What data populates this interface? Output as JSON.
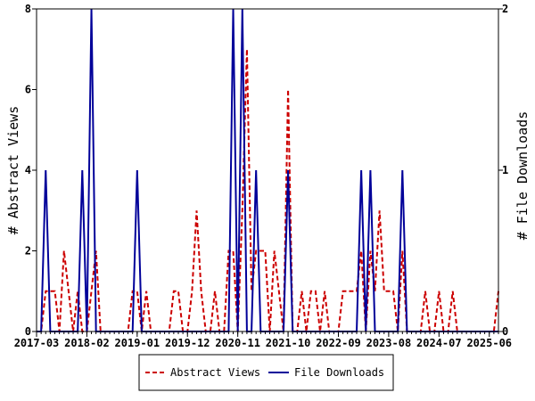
{
  "chart_data": {
    "type": "line",
    "left_axis": {
      "label": "# Abstract Views",
      "ylim": [
        0,
        8
      ],
      "ticks": [
        "0",
        "2",
        "4",
        "6",
        "8"
      ]
    },
    "right_axis": {
      "label": "# File Downloads",
      "ylim": [
        0,
        2
      ],
      "ticks": [
        "0",
        "1",
        "2"
      ]
    },
    "x_ticks": [
      "2017-03",
      "2018-02",
      "2019-01",
      "2019-12",
      "2020-11",
      "2021-10",
      "2022-09",
      "2023-08",
      "2024-07",
      "2025-06"
    ],
    "x_start": "2017-03",
    "grid": false,
    "legend_position": "bottom",
    "colors": {
      "abstract": "#cc0000",
      "downloads": "#000099"
    },
    "series": [
      {
        "name": "Abstract Views",
        "axis": "left",
        "style": "dashed",
        "points": [
          [
            "2017-03",
            0
          ],
          [
            "2017-04",
            0
          ],
          [
            "2017-05",
            1
          ],
          [
            "2017-06",
            1
          ],
          [
            "2017-07",
            1
          ],
          [
            "2017-08",
            0
          ],
          [
            "2017-09",
            2
          ],
          [
            "2017-10",
            1
          ],
          [
            "2017-11",
            0
          ],
          [
            "2017-12",
            1
          ],
          [
            "2018-01",
            0
          ],
          [
            "2018-02",
            0
          ],
          [
            "2018-03",
            1
          ],
          [
            "2018-04",
            2
          ],
          [
            "2018-05",
            0
          ],
          [
            "2018-06",
            0
          ],
          [
            "2018-07",
            0
          ],
          [
            "2018-08",
            0
          ],
          [
            "2018-09",
            0
          ],
          [
            "2018-10",
            0
          ],
          [
            "2018-11",
            0
          ],
          [
            "2018-12",
            1
          ],
          [
            "2019-01",
            1
          ],
          [
            "2019-02",
            0
          ],
          [
            "2019-03",
            1
          ],
          [
            "2019-04",
            0
          ],
          [
            "2019-05",
            0
          ],
          [
            "2019-06",
            0
          ],
          [
            "2019-07",
            0
          ],
          [
            "2019-08",
            0
          ],
          [
            "2019-09",
            1
          ],
          [
            "2019-10",
            1
          ],
          [
            "2019-11",
            0
          ],
          [
            "2019-12",
            0
          ],
          [
            "2020-01",
            1
          ],
          [
            "2020-02",
            3
          ],
          [
            "2020-03",
            1
          ],
          [
            "2020-04",
            0
          ],
          [
            "2020-05",
            0
          ],
          [
            "2020-06",
            1
          ],
          [
            "2020-07",
            0
          ],
          [
            "2020-08",
            0
          ],
          [
            "2020-09",
            2
          ],
          [
            "2020-10",
            2
          ],
          [
            "2020-11",
            0
          ],
          [
            "2020-12",
            3
          ],
          [
            "2021-01",
            7
          ],
          [
            "2021-02",
            1
          ],
          [
            "2021-03",
            2
          ],
          [
            "2021-04",
            2
          ],
          [
            "2021-05",
            2
          ],
          [
            "2021-06",
            0
          ],
          [
            "2021-07",
            2
          ],
          [
            "2021-08",
            1
          ],
          [
            "2021-09",
            0
          ],
          [
            "2021-10",
            6
          ],
          [
            "2021-11",
            0
          ],
          [
            "2021-12",
            0
          ],
          [
            "2022-01",
            1
          ],
          [
            "2022-02",
            0
          ],
          [
            "2022-03",
            1
          ],
          [
            "2022-04",
            1
          ],
          [
            "2022-05",
            0
          ],
          [
            "2022-06",
            1
          ],
          [
            "2022-07",
            0
          ],
          [
            "2022-08",
            0
          ],
          [
            "2022-09",
            0
          ],
          [
            "2022-10",
            1
          ],
          [
            "2022-11",
            1
          ],
          [
            "2022-12",
            1
          ],
          [
            "2023-01",
            1
          ],
          [
            "2023-02",
            2
          ],
          [
            "2023-03",
            0
          ],
          [
            "2023-04",
            2
          ],
          [
            "2023-05",
            1
          ],
          [
            "2023-06",
            3
          ],
          [
            "2023-07",
            1
          ],
          [
            "2023-08",
            1
          ],
          [
            "2023-09",
            1
          ],
          [
            "2023-10",
            0
          ],
          [
            "2023-11",
            2
          ],
          [
            "2023-12",
            0
          ],
          [
            "2024-01",
            0
          ],
          [
            "2024-02",
            0
          ],
          [
            "2024-03",
            0
          ],
          [
            "2024-04",
            1
          ],
          [
            "2024-05",
            0
          ],
          [
            "2024-06",
            0
          ],
          [
            "2024-07",
            1
          ],
          [
            "2024-08",
            0
          ],
          [
            "2024-09",
            0
          ],
          [
            "2024-10",
            1
          ],
          [
            "2024-11",
            0
          ],
          [
            "2024-12",
            0
          ],
          [
            "2025-01",
            0
          ],
          [
            "2025-02",
            0
          ],
          [
            "2025-03",
            0
          ],
          [
            "2025-04",
            0
          ],
          [
            "2025-05",
            0
          ],
          [
            "2025-06",
            0
          ],
          [
            "2025-07",
            0
          ],
          [
            "2025-08",
            1
          ]
        ]
      },
      {
        "name": "File Downloads",
        "axis": "right",
        "style": "solid",
        "points": [
          [
            "2017-03",
            0
          ],
          [
            "2017-04",
            0
          ],
          [
            "2017-05",
            1
          ],
          [
            "2017-06",
            0
          ],
          [
            "2017-07",
            0
          ],
          [
            "2017-08",
            0
          ],
          [
            "2017-09",
            0
          ],
          [
            "2017-10",
            0
          ],
          [
            "2017-11",
            0
          ],
          [
            "2017-12",
            0
          ],
          [
            "2018-01",
            1
          ],
          [
            "2018-02",
            0
          ],
          [
            "2018-03",
            2
          ],
          [
            "2018-04",
            0
          ],
          [
            "2018-05",
            0
          ],
          [
            "2018-06",
            0
          ],
          [
            "2018-07",
            0
          ],
          [
            "2018-08",
            0
          ],
          [
            "2018-09",
            0
          ],
          [
            "2018-10",
            0
          ],
          [
            "2018-11",
            0
          ],
          [
            "2018-12",
            0
          ],
          [
            "2019-01",
            1
          ],
          [
            "2019-02",
            0
          ],
          [
            "2019-03",
            0
          ],
          [
            "2019-04",
            0
          ],
          [
            "2019-05",
            0
          ],
          [
            "2019-06",
            0
          ],
          [
            "2019-07",
            0
          ],
          [
            "2019-08",
            0
          ],
          [
            "2019-09",
            0
          ],
          [
            "2019-10",
            0
          ],
          [
            "2019-11",
            0
          ],
          [
            "2019-12",
            0
          ],
          [
            "2020-01",
            0
          ],
          [
            "2020-02",
            0
          ],
          [
            "2020-03",
            0
          ],
          [
            "2020-04",
            0
          ],
          [
            "2020-05",
            0
          ],
          [
            "2020-06",
            0
          ],
          [
            "2020-07",
            0
          ],
          [
            "2020-08",
            0
          ],
          [
            "2020-09",
            0
          ],
          [
            "2020-10",
            2
          ],
          [
            "2020-11",
            0
          ],
          [
            "2020-12",
            2
          ],
          [
            "2021-01",
            0
          ],
          [
            "2021-02",
            0
          ],
          [
            "2021-03",
            1
          ],
          [
            "2021-04",
            0
          ],
          [
            "2021-05",
            0
          ],
          [
            "2021-06",
            0
          ],
          [
            "2021-07",
            0
          ],
          [
            "2021-08",
            0
          ],
          [
            "2021-09",
            0
          ],
          [
            "2021-10",
            1
          ],
          [
            "2021-11",
            0
          ],
          [
            "2021-12",
            0
          ],
          [
            "2022-01",
            0
          ],
          [
            "2022-02",
            0
          ],
          [
            "2022-03",
            0
          ],
          [
            "2022-04",
            0
          ],
          [
            "2022-05",
            0
          ],
          [
            "2022-06",
            0
          ],
          [
            "2022-07",
            0
          ],
          [
            "2022-08",
            0
          ],
          [
            "2022-09",
            0
          ],
          [
            "2022-10",
            0
          ],
          [
            "2022-11",
            0
          ],
          [
            "2022-12",
            0
          ],
          [
            "2023-01",
            0
          ],
          [
            "2023-02",
            1
          ],
          [
            "2023-03",
            0
          ],
          [
            "2023-04",
            1
          ],
          [
            "2023-05",
            0
          ],
          [
            "2023-06",
            0
          ],
          [
            "2023-07",
            0
          ],
          [
            "2023-08",
            0
          ],
          [
            "2023-09",
            0
          ],
          [
            "2023-10",
            0
          ],
          [
            "2023-11",
            1
          ],
          [
            "2023-12",
            0
          ],
          [
            "2024-01",
            0
          ],
          [
            "2024-02",
            0
          ],
          [
            "2024-03",
            0
          ],
          [
            "2024-04",
            0
          ],
          [
            "2024-05",
            0
          ],
          [
            "2024-06",
            0
          ],
          [
            "2024-07",
            0
          ],
          [
            "2024-08",
            0
          ],
          [
            "2024-09",
            0
          ],
          [
            "2024-10",
            0
          ],
          [
            "2024-11",
            0
          ],
          [
            "2024-12",
            0
          ],
          [
            "2025-01",
            0
          ],
          [
            "2025-02",
            0
          ],
          [
            "2025-03",
            0
          ],
          [
            "2025-04",
            0
          ],
          [
            "2025-05",
            0
          ],
          [
            "2025-06",
            0
          ],
          [
            "2025-07",
            0
          ],
          [
            "2025-08",
            0
          ]
        ]
      }
    ]
  }
}
